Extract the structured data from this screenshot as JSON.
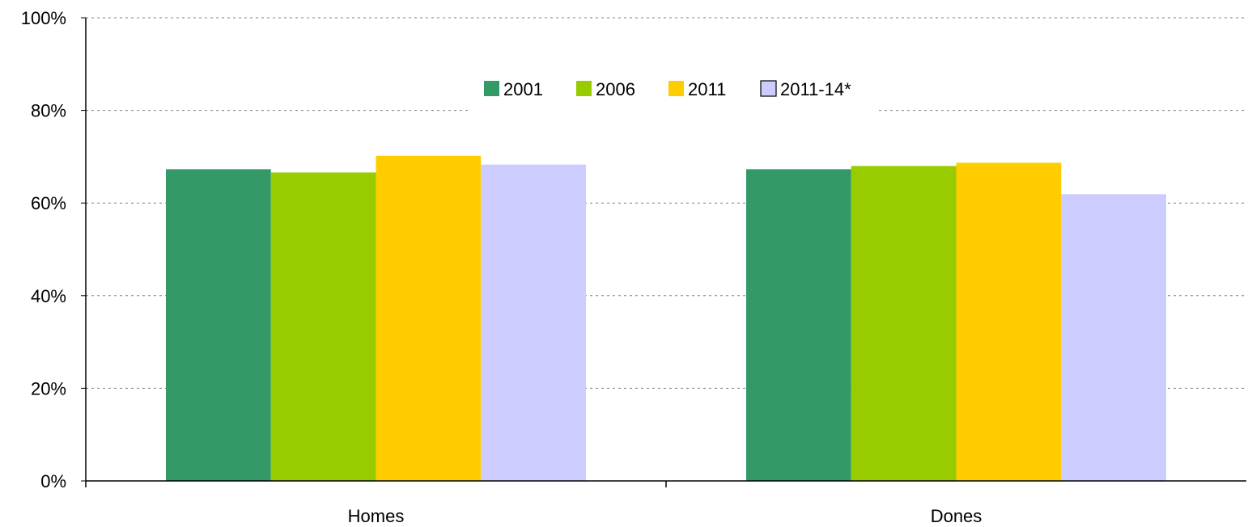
{
  "chart_data": {
    "type": "bar",
    "title": "",
    "xlabel": "",
    "ylabel": "",
    "categories": [
      "Homes",
      "Dones"
    ],
    "series": [
      {
        "name": "2001",
        "color": "#339966",
        "values": [
          67.3,
          67.3
        ]
      },
      {
        "name": "2006",
        "color": "#99cc00",
        "values": [
          66.6,
          68.0
        ]
      },
      {
        "name": "2011",
        "color": "#ffcc00",
        "values": [
          70.2,
          68.7
        ]
      },
      {
        "name": "2011-14*",
        "color": "#ccccff",
        "values": [
          68.3,
          61.9
        ]
      }
    ],
    "ylim": [
      0,
      100
    ],
    "yticks": [
      0,
      20,
      40,
      60,
      80,
      100
    ],
    "ytick_labels": [
      "0%",
      "20%",
      "40%",
      "60%",
      "80%",
      "100%"
    ],
    "grid": true,
    "legend_position": "top-center"
  }
}
